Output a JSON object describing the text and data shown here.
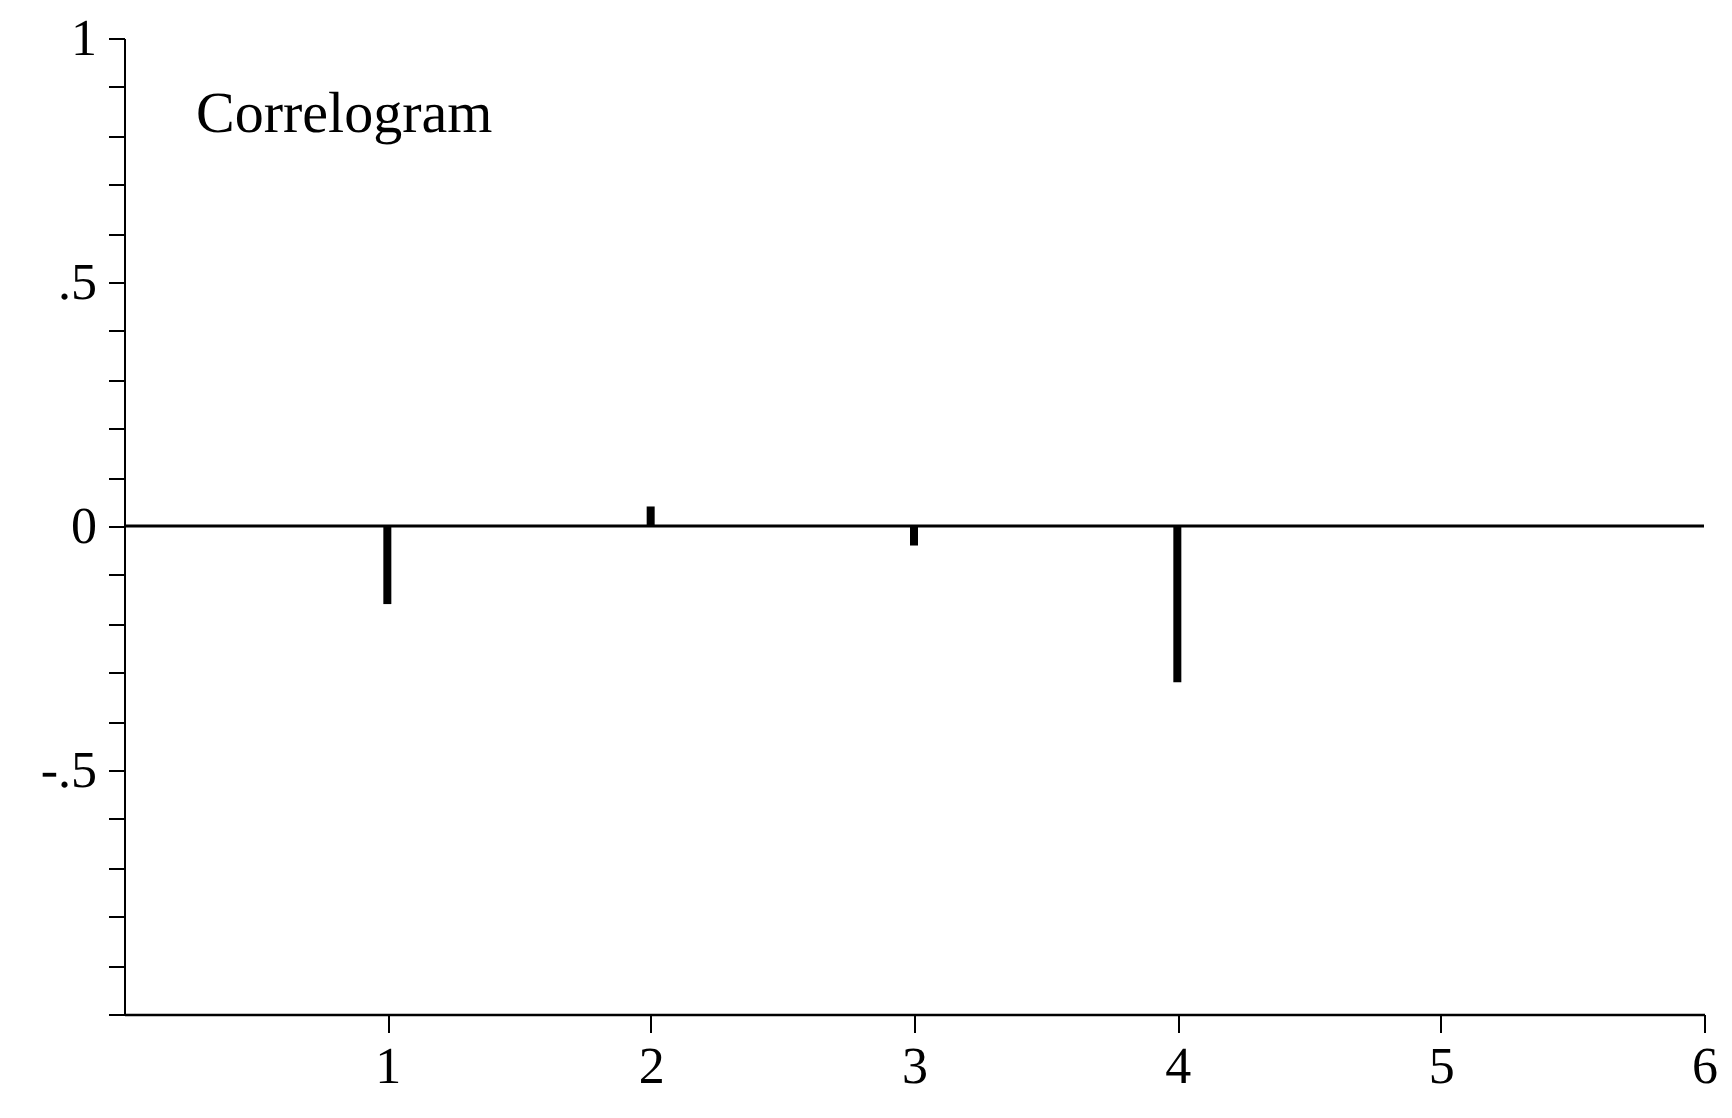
{
  "chart_data": {
    "type": "bar",
    "x": [
      1,
      2,
      3,
      4
    ],
    "values": [
      -0.16,
      0.04,
      -0.04,
      -0.32
    ],
    "color": "#000000",
    "xlim": [
      0,
      6
    ],
    "xticks": [
      1,
      2,
      3,
      4,
      5,
      6
    ],
    "ylim": [
      -1,
      1
    ],
    "yticks": [
      {
        "value": -1,
        "label": null
      },
      {
        "value": -0.9,
        "label": null
      },
      {
        "value": -0.8,
        "label": null
      },
      {
        "value": -0.7,
        "label": null
      },
      {
        "value": -0.6,
        "label": null
      },
      {
        "value": -0.5,
        "label": "-.5"
      },
      {
        "value": -0.4,
        "label": null
      },
      {
        "value": -0.3,
        "label": null
      },
      {
        "value": -0.2,
        "label": null
      },
      {
        "value": -0.1,
        "label": null
      },
      0,
      {
        "value": 0.1,
        "label": null
      },
      {
        "value": 0.2,
        "label": null
      },
      {
        "value": 0.3,
        "label": null
      },
      {
        "value": 0.4,
        "label": null
      },
      {
        "value": 0.5,
        "label": ".5"
      },
      {
        "value": 0.6,
        "label": null
      },
      {
        "value": 0.7,
        "label": null
      },
      {
        "value": 0.8,
        "label": null
      },
      {
        "value": 0.9,
        "label": null
      },
      1
    ],
    "ref_lines": [
      {
        "axis": "y",
        "value": 0,
        "color": "#000000"
      }
    ],
    "annotations": [
      "Correlogram"
    ]
  }
}
